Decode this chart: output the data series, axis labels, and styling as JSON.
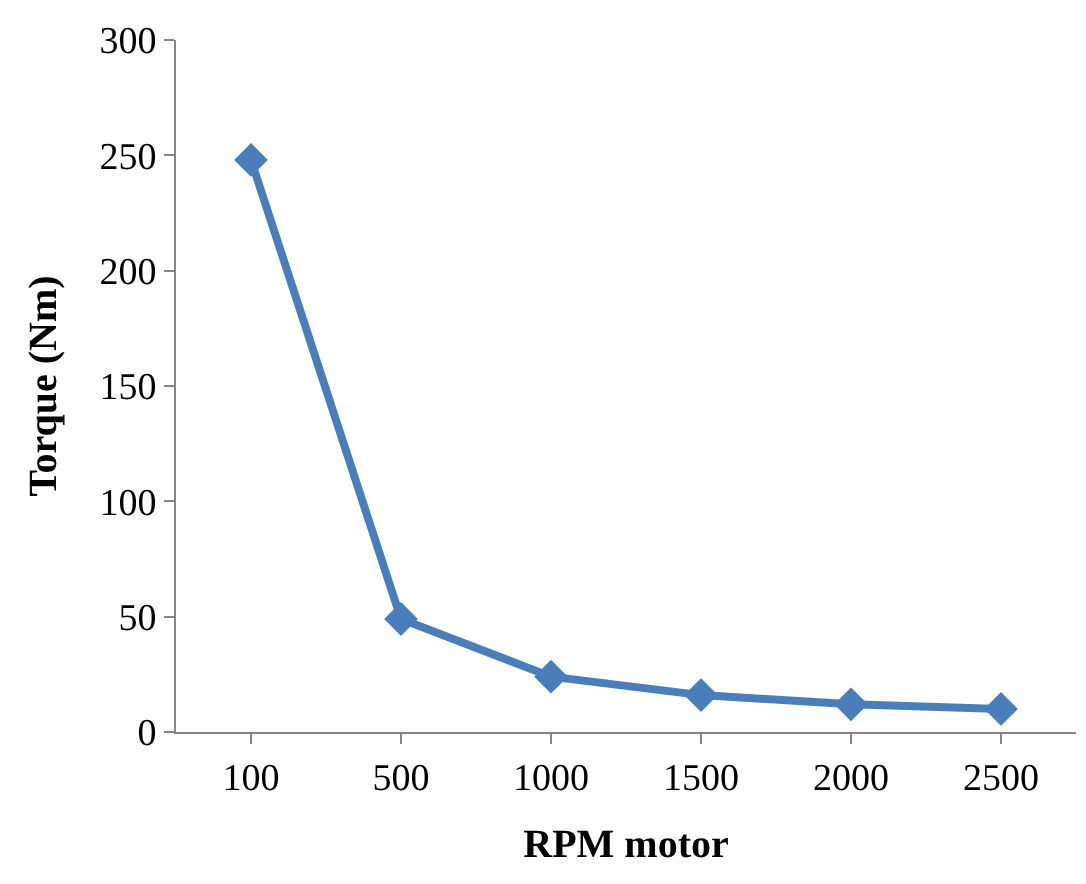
{
  "chart_data": {
    "type": "line",
    "xlabel": "RPM motor",
    "ylabel": "Torque (Nm)",
    "categories": [
      "100",
      "500",
      "1000",
      "1500",
      "2000",
      "2500"
    ],
    "series": [
      {
        "color": "#4a7ebb",
        "values": [
          248,
          49,
          24,
          16,
          12,
          10
        ]
      }
    ],
    "ylim": [
      0,
      300
    ],
    "yticks": [
      0,
      50,
      100,
      150,
      200,
      250,
      300
    ],
    "marker": "diamond",
    "line_style": "solid"
  }
}
